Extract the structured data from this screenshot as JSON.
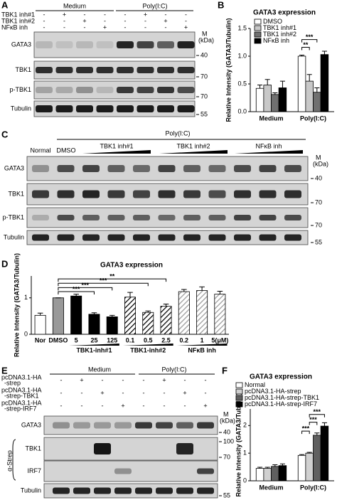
{
  "panel_labels": [
    "A",
    "B",
    "C",
    "D",
    "E",
    "F"
  ],
  "panel_a": {
    "group_headers": [
      "Medium",
      "Poly(I:C)"
    ],
    "treatments": [
      {
        "label": "TBK1 inh#1",
        "signs": [
          "-",
          "+",
          "-",
          "-",
          "-",
          "+",
          "-",
          "-"
        ]
      },
      {
        "label": "TBK1 inh#2",
        "signs": [
          "-",
          "-",
          "+",
          "-",
          "-",
          "-",
          "+",
          "-"
        ]
      },
      {
        "label": "NFκB inh",
        "signs": [
          "-",
          "-",
          "-",
          "+",
          "-",
          "-",
          "-",
          "+"
        ]
      }
    ],
    "marker_title": [
      "M",
      "(kDa)"
    ],
    "blots": [
      {
        "label": "GATA3",
        "markers": [
          40
        ]
      },
      {
        "label": "TBK1",
        "markers": [
          70
        ]
      },
      {
        "label": "p-TBK1",
        "markers": [
          70
        ]
      },
      {
        "label": "Tubulin",
        "markers": [
          55
        ]
      }
    ]
  },
  "panel_c": {
    "header": "Poly(I:C)",
    "lanes": [
      "Normal",
      "DMSO",
      "TBK1 inh#1",
      "TBK1 inh#2",
      "NFκB inh"
    ],
    "marker_title": [
      "M",
      "(kDa)"
    ],
    "blots": [
      {
        "label": "GATA3",
        "markers": [
          40
        ]
      },
      {
        "label": "TBK1",
        "markers": [
          70
        ]
      },
      {
        "label": "p-TBK1",
        "markers": [
          70
        ]
      },
      {
        "label": "Tubulin",
        "markers": [
          55
        ]
      }
    ]
  },
  "panel_e": {
    "group_headers": [
      "Medium",
      "Poly(I:C)"
    ],
    "treatments": [
      {
        "label": [
          "pcDNA3.1-HA",
          "-strep"
        ],
        "signs": [
          "-",
          "+",
          "-",
          "-",
          "-",
          "+",
          "-",
          "-"
        ]
      },
      {
        "label": [
          "pcDNA3.1-HA",
          "-strep-TBK1"
        ],
        "signs": [
          "-",
          "-",
          "+",
          "-",
          "-",
          "-",
          "+",
          "-"
        ]
      },
      {
        "label": [
          "pcDNA3.1-HA",
          "-strep-IRF7"
        ],
        "signs": [
          "-",
          "-",
          "-",
          "+",
          "-",
          "-",
          "-",
          "+"
        ]
      }
    ],
    "marker_title": [
      "M",
      "(kDa)"
    ],
    "strep_label": "α-Strep",
    "blots": [
      {
        "label": "GATA3",
        "markers": [
          40
        ]
      },
      {
        "label": "TBK1",
        "markers": [
          100,
          70
        ]
      },
      {
        "label": "IRF7",
        "markers": []
      },
      {
        "label": "Tubulin",
        "markers": [
          55
        ]
      }
    ]
  },
  "chart_data": [
    {
      "type": "bar",
      "title": "GATA3 expression",
      "y_label": "Relative Intensity (GATA3/Tubulin)",
      "categories": [
        "Medium",
        "Poly(I:C)"
      ],
      "series": [
        {
          "name": "DMSO",
          "color": "#ffffff",
          "values": [
            0.42,
            1.0
          ],
          "errors": [
            0.06,
            0.02
          ]
        },
        {
          "name": "TBK1 inh#1",
          "color": "#c8c8c8",
          "values": [
            0.48,
            0.55
          ],
          "errors": [
            0.1,
            0.12
          ]
        },
        {
          "name": "TBK1 inh#2",
          "color": "#707070",
          "values": [
            0.31,
            0.35
          ],
          "errors": [
            0.03,
            0.08
          ]
        },
        {
          "name": "NFκB inh",
          "color": "#000000",
          "values": [
            0.43,
            1.03
          ],
          "errors": [
            0.12,
            0.06
          ]
        }
      ],
      "annotations": [
        "**",
        "***"
      ],
      "ylim": [
        0,
        1.5
      ],
      "yticks": [
        {
          "value": 0,
          "label": "0.0"
        },
        {
          "value": 0.5,
          "label": "0.5"
        },
        {
          "value": 1,
          "label": "1.0"
        },
        {
          "value": 1.5,
          "label": "1.5"
        }
      ]
    },
    {
      "type": "bar",
      "title": "GATA3 expression",
      "y_label": "Relative Intensity (GATA3/Tubulin)",
      "categories": [
        "Nor",
        "DMSO",
        "5",
        "25",
        "125",
        "0.1",
        "0.5",
        "2.5",
        "0.2",
        "1",
        "5(μM)"
      ],
      "groups": [
        "TBK1-inh#1",
        "TBK1-inh#2",
        "NFκB inh"
      ],
      "values": [
        0.52,
        1.0,
        1.05,
        0.55,
        0.48,
        1.02,
        0.6,
        0.77,
        1.17,
        1.2,
        1.1
      ],
      "errors": [
        0.06,
        0,
        0.05,
        0.04,
        0.04,
        0.13,
        0.04,
        0.06,
        0.06,
        0.1,
        0.08
      ],
      "colors": [
        "#ffffff",
        "#999999",
        "#000000",
        "#000000",
        "#000000",
        "#000000",
        "#000000",
        "#000000",
        "#9a9a9a",
        "#9a9a9a",
        "#9a9a9a"
      ],
      "hatch": [
        false,
        false,
        false,
        false,
        false,
        true,
        true,
        true,
        true,
        true,
        true
      ],
      "annotations": [
        "**",
        "***",
        "***",
        "***"
      ],
      "ylim": [
        0,
        1.6
      ],
      "yticks": [
        0,
        1
      ]
    },
    {
      "type": "bar",
      "title": "GATA3 expression",
      "y_label": "Relative Intensity (GATA3/Tubulin)",
      "categories": [
        "Medium",
        "Poly(I:C)"
      ],
      "series": [
        {
          "name": "Normal",
          "color": "#ffffff",
          "values": [
            0.45,
            0.92
          ],
          "errors": [
            0.04,
            0.03
          ]
        },
        {
          "name": "pcDNA3.1-HA-strep",
          "color": "#d0d0d0",
          "values": [
            0.45,
            1.0
          ],
          "errors": [
            0.04,
            0.03
          ]
        },
        {
          "name": "pcDNA3.1-HA-strep-TBK1",
          "color": "#606060",
          "values": [
            0.52,
            1.65
          ],
          "errors": [
            0.06,
            0.08
          ]
        },
        {
          "name": "pcDNA3.1-HA-strep-IRF7",
          "color": "#000000",
          "values": [
            0.55,
            1.98
          ],
          "errors": [
            0.06,
            0.12
          ]
        }
      ],
      "annotations": [
        "***",
        "***",
        "***"
      ],
      "ylim": [
        0,
        2.6
      ],
      "yticks": [
        0,
        1,
        2
      ]
    }
  ]
}
